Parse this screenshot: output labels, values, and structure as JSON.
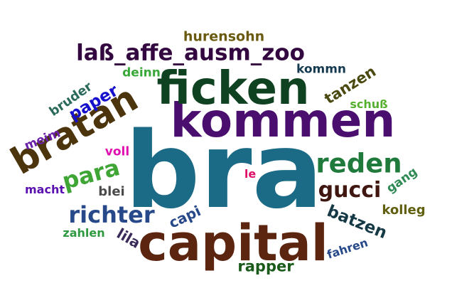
{
  "words": [
    {
      "key": "bra",
      "text": "bra",
      "color": "#1b6a86",
      "weight": 1.0
    },
    {
      "key": "kommen",
      "text": "kommen",
      "color": "#4a0f6e",
      "weight": 0.55
    },
    {
      "key": "capital",
      "text": "capital",
      "color": "#5c2510",
      "weight": 0.5
    },
    {
      "key": "ficken",
      "text": "ficken",
      "color": "#0f4220",
      "weight": 0.48
    },
    {
      "key": "bratan",
      "text": "bratan",
      "color": "#4c340d",
      "weight": 0.4
    },
    {
      "key": "laß_affe_ausm_zoo",
      "text": "laß_affe_ausm_zoo",
      "color": "#33073f",
      "weight": 0.22
    },
    {
      "key": "reden",
      "text": "reden",
      "color": "#1f7a3c",
      "weight": 0.24
    },
    {
      "key": "richter",
      "text": "richter",
      "color": "#27498a",
      "weight": 0.24
    },
    {
      "key": "para",
      "text": "para",
      "color": "#3fa636",
      "weight": 0.24
    },
    {
      "key": "gucci",
      "text": "gucci",
      "color": "#401610",
      "weight": 0.22
    },
    {
      "key": "batzen",
      "text": "batzen",
      "color": "#153a45",
      "weight": 0.18
    },
    {
      "key": "paper",
      "text": "paper",
      "color": "#1610cc",
      "weight": 0.16
    },
    {
      "key": "tanzen",
      "text": "tanzen",
      "color": "#4a4a10",
      "weight": 0.16
    },
    {
      "key": "rapper",
      "text": "rapper",
      "color": "#1a5a1a",
      "weight": 0.14
    },
    {
      "key": "hurensohn",
      "text": "hurensohn",
      "color": "#6a5a10",
      "weight": 0.12
    },
    {
      "key": "kommn",
      "text": "kommn",
      "color": "#153a50",
      "weight": 0.11
    },
    {
      "key": "deinn",
      "text": "deinn",
      "color": "#38a838",
      "weight": 0.11
    },
    {
      "key": "bruder",
      "text": "bruder",
      "color": "#2a6a5a",
      "weight": 0.12
    },
    {
      "key": "schuß",
      "text": "schuß",
      "color": "#56b030",
      "weight": 0.11
    },
    {
      "key": "meim",
      "text": "meim",
      "color": "#6a20a8",
      "weight": 0.12
    },
    {
      "key": "voll",
      "text": "voll",
      "color": "#e010b0",
      "weight": 0.12
    },
    {
      "key": "le",
      "text": "le",
      "color": "#e0106a",
      "weight": 0.1
    },
    {
      "key": "gang",
      "text": "gang",
      "color": "#2f8a55",
      "weight": 0.12
    },
    {
      "key": "macht",
      "text": "macht",
      "color": "#5a10b0",
      "weight": 0.11
    },
    {
      "key": "blei",
      "text": "blei",
      "color": "#4a4a4a",
      "weight": 0.12
    },
    {
      "key": "kolleg",
      "text": "kolleg",
      "color": "#606010",
      "weight": 0.12
    },
    {
      "key": "capi",
      "text": "capi",
      "color": "#27498a",
      "weight": 0.14
    },
    {
      "key": "lila",
      "text": "lila",
      "color": "#3a2a5a",
      "weight": 0.14
    },
    {
      "key": "zahlen",
      "text": "zahlen",
      "color": "#2f9a40",
      "weight": 0.11
    },
    {
      "key": "fahren",
      "text": "fahren",
      "color": "#27498a",
      "weight": 0.11
    }
  ]
}
